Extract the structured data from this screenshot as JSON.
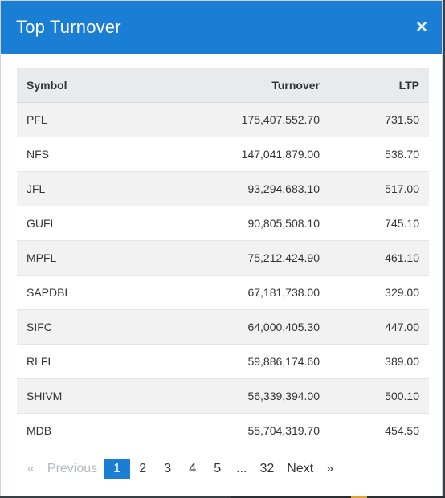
{
  "modal": {
    "title": "Top Turnover",
    "close_icon": "×"
  },
  "table": {
    "headers": {
      "symbol": "Symbol",
      "turnover": "Turnover",
      "ltp": "LTP"
    },
    "rows": [
      {
        "symbol": "PFL",
        "turnover": "175,407,552.70",
        "ltp": "731.50"
      },
      {
        "symbol": "NFS",
        "turnover": "147,041,879.00",
        "ltp": "538.70"
      },
      {
        "symbol": "JFL",
        "turnover": "93,294,683.10",
        "ltp": "517.00"
      },
      {
        "symbol": "GUFL",
        "turnover": "90,805,508.10",
        "ltp": "745.10"
      },
      {
        "symbol": "MPFL",
        "turnover": "75,212,424.90",
        "ltp": "461.10"
      },
      {
        "symbol": "SAPDBL",
        "turnover": "67,181,738.00",
        "ltp": "329.00"
      },
      {
        "symbol": "SIFC",
        "turnover": "64,000,405.30",
        "ltp": "447.00"
      },
      {
        "symbol": "RLFL",
        "turnover": "59,886,174.60",
        "ltp": "389.00"
      },
      {
        "symbol": "SHIVM",
        "turnover": "56,339,394.00",
        "ltp": "500.10"
      },
      {
        "symbol": "MDB",
        "turnover": "55,704,319.70",
        "ltp": "454.50"
      }
    ]
  },
  "pagination": {
    "first": "«",
    "previous": "Previous",
    "pages": [
      "1",
      "2",
      "3",
      "4",
      "5"
    ],
    "ellipsis": "...",
    "last_page": "32",
    "next": "Next",
    "last": "»",
    "current": "1"
  },
  "colors": {
    "header_bg": "#1a7fd4",
    "active_page": "#1a7fd4",
    "stripe": "#f2f2f2"
  }
}
